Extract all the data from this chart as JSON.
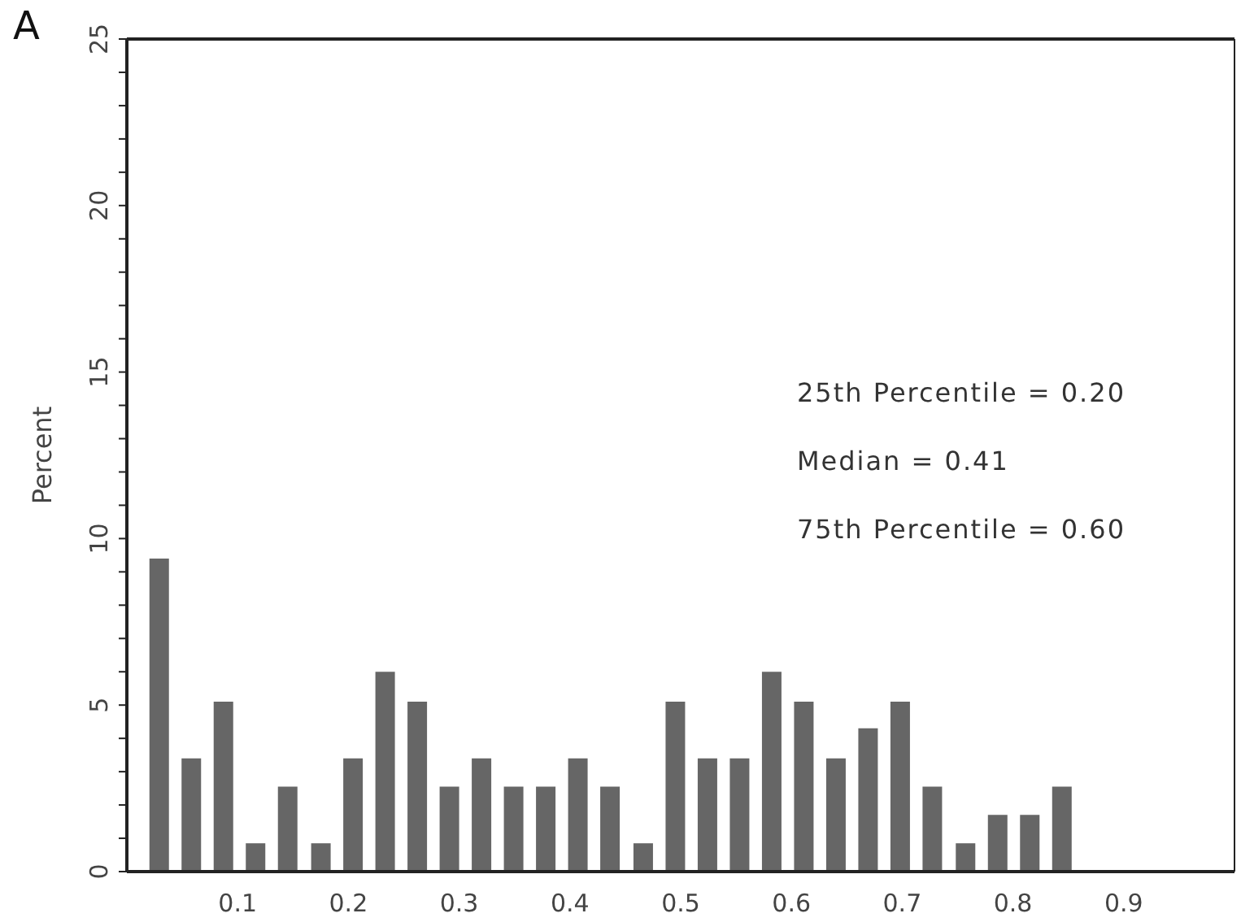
{
  "chart_data": {
    "type": "bar",
    "title": "A",
    "ylabel": "Percent",
    "x": [
      0.029,
      0.058,
      0.087,
      0.116,
      0.145,
      0.175,
      0.204,
      0.233,
      0.262,
      0.291,
      0.32,
      0.349,
      0.378,
      0.407,
      0.436,
      0.466,
      0.495,
      0.524,
      0.553,
      0.582,
      0.611,
      0.64,
      0.669,
      0.698,
      0.727,
      0.757,
      0.786,
      0.815,
      0.844
    ],
    "values": [
      9.4,
      3.4,
      5.1,
      0.85,
      2.55,
      0.85,
      3.4,
      6.0,
      5.1,
      2.55,
      3.4,
      2.55,
      2.55,
      3.4,
      2.55,
      0.85,
      5.1,
      3.4,
      3.4,
      6.0,
      5.1,
      3.4,
      4.3,
      5.1,
      2.55,
      0.85,
      1.7,
      1.7,
      2.55
    ],
    "color": "#666666",
    "xlim": [
      0,
      1
    ],
    "xticks": [
      0.1,
      0.2,
      0.3,
      0.4,
      0.5,
      0.6,
      0.7,
      0.8,
      0.9
    ],
    "ylim": [
      0,
      25
    ],
    "yticks": [
      0,
      {
        "value": 1,
        "label": null
      },
      {
        "value": 2,
        "label": null
      },
      {
        "value": 3,
        "label": null
      },
      {
        "value": 4,
        "label": null
      },
      5,
      {
        "value": 6,
        "label": null
      },
      {
        "value": 7,
        "label": null
      },
      {
        "value": 8,
        "label": null
      },
      {
        "value": 9,
        "label": null
      },
      10,
      {
        "value": 11,
        "label": null
      },
      {
        "value": 12,
        "label": null
      },
      {
        "value": 13,
        "label": null
      },
      {
        "value": 14,
        "label": null
      },
      15,
      {
        "value": 16,
        "label": null
      },
      {
        "value": 17,
        "label": null
      },
      {
        "value": 18,
        "label": null
      },
      {
        "value": 19,
        "label": null
      },
      20,
      {
        "value": 21,
        "label": null
      },
      {
        "value": 22,
        "label": null
      },
      {
        "value": 23,
        "label": null
      },
      {
        "value": 24,
        "label": null
      },
      25
    ],
    "annotations": [
      "25th Percentile = 0.20",
      "Median = 0.41",
      "75th Percentile = 0.60"
    ]
  }
}
